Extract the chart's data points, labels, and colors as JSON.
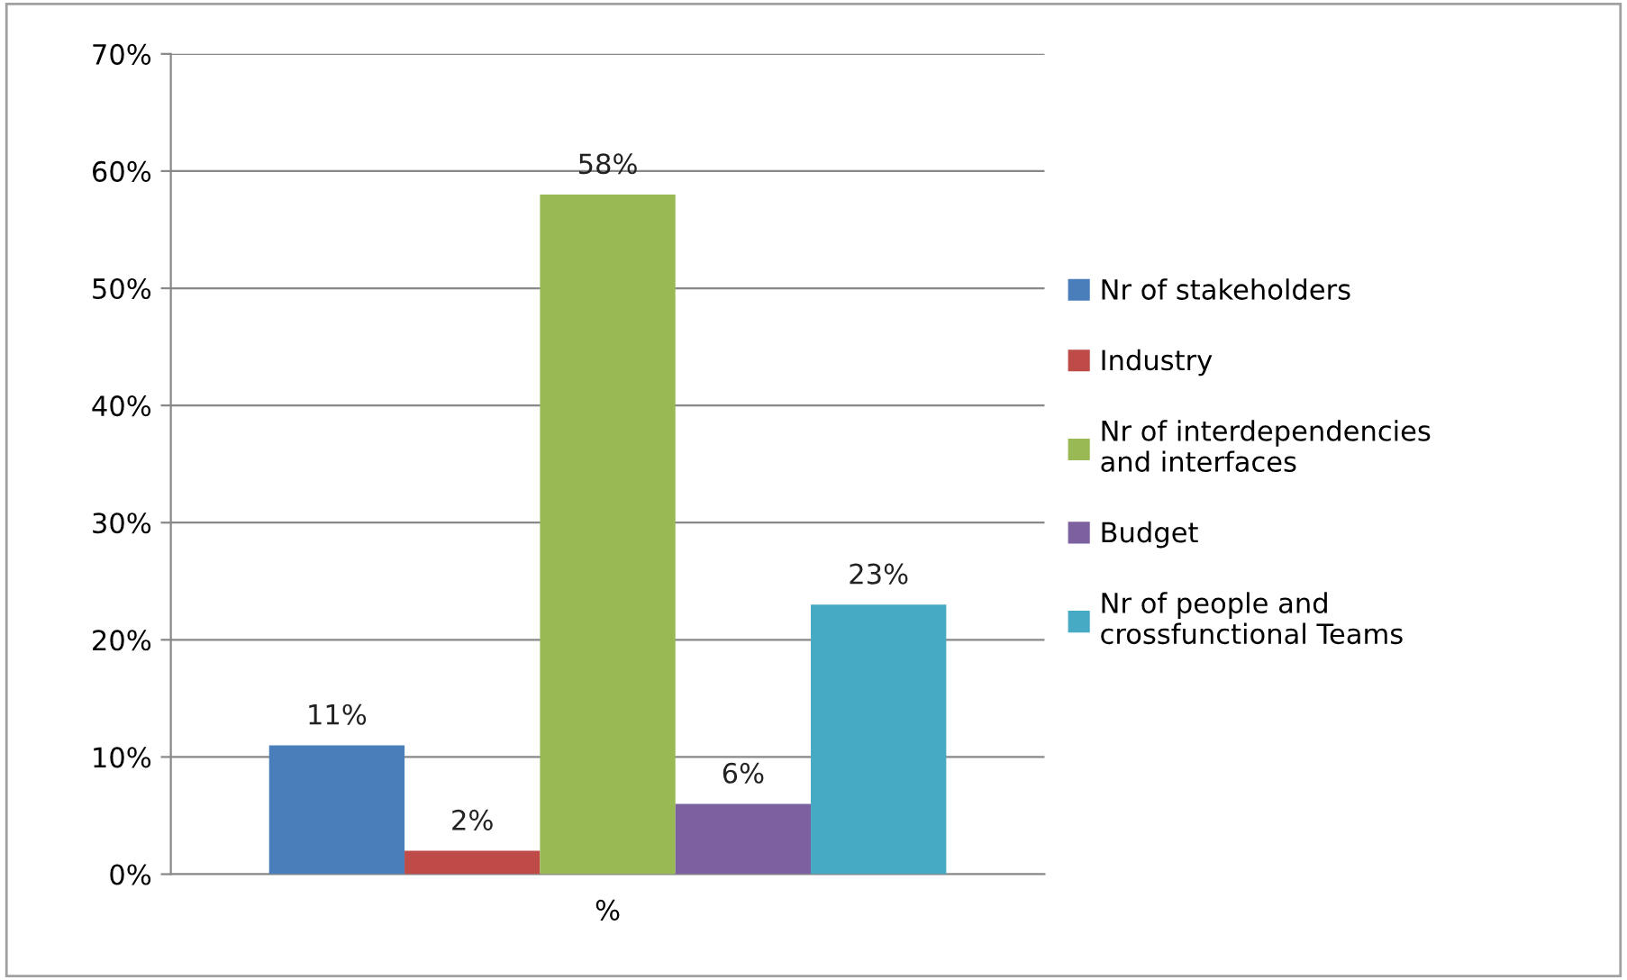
{
  "chart_data": {
    "type": "bar",
    "categories": [
      "%"
    ],
    "series": [
      {
        "name": "Nr of stakeholders",
        "color": "#4a7ebb",
        "values": [
          11
        ],
        "value_labels": [
          "11%"
        ]
      },
      {
        "name": "Industry",
        "color": "#be4b48",
        "values": [
          2
        ],
        "value_labels": [
          "2%"
        ]
      },
      {
        "name": "Nr of interdependencies\nand interfaces",
        "color": "#98b954",
        "values": [
          58
        ],
        "value_labels": [
          "58%"
        ]
      },
      {
        "name": "Budget",
        "color": "#7d60a0",
        "values": [
          6
        ],
        "value_labels": [
          "6%"
        ]
      },
      {
        "name": "Nr of people and\ncrossfunctional Teams",
        "color": "#46aac5",
        "values": [
          23
        ],
        "value_labels": [
          "23%"
        ]
      }
    ],
    "ylim": [
      0,
      70
    ],
    "yticks": [
      {
        "value": 0,
        "label": "0%"
      },
      {
        "value": 10,
        "label": "10%"
      },
      {
        "value": 20,
        "label": "20%"
      },
      {
        "value": 30,
        "label": "30%"
      },
      {
        "value": 40,
        "label": "40%"
      },
      {
        "value": 50,
        "label": "50%"
      },
      {
        "value": 60,
        "label": "60%"
      },
      {
        "value": 70,
        "label": "70%"
      }
    ],
    "grid": "y",
    "legend": "right"
  }
}
